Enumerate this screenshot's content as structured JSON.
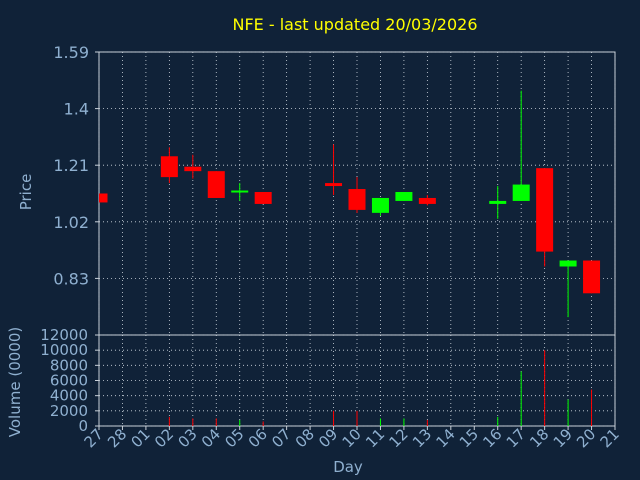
{
  "chart_data": {
    "type": "candlestick",
    "title": "NFE - last updated 20/03/2026",
    "ylabel": "Price",
    "volume_ylabel": "Volume (0000)",
    "xlabel": "Day",
    "ylim": [
      0.64,
      1.59
    ],
    "price_ticks": [
      "0.83",
      "1.02",
      "1.21",
      "1.4",
      "1.59"
    ],
    "volume_ylim": [
      0,
      12000
    ],
    "volume_ticks": [
      "0",
      "2000",
      "4000",
      "6000",
      "8000",
      "10000",
      "12000"
    ],
    "x_labels": [
      "27",
      "28",
      "01",
      "02",
      "03",
      "04",
      "05",
      "06",
      "07",
      "08",
      "09",
      "10",
      "11",
      "12",
      "13",
      "14",
      "15",
      "16",
      "17",
      "18",
      "19",
      "20",
      "21"
    ],
    "grid": true,
    "colors": {
      "background": "#102238",
      "up": "#00ff00",
      "down": "#ff0000",
      "grid": "#d0d8e0",
      "title": "#ffff00",
      "axis_text": "#8fb0d0"
    },
    "candles": [
      {
        "x": "27",
        "open": 1.115,
        "high": 1.115,
        "low": 1.085,
        "close": 1.085,
        "volume": 0
      },
      {
        "x": "02",
        "open": 1.24,
        "high": 1.27,
        "low": 1.15,
        "close": 1.17,
        "volume": 1200
      },
      {
        "x": "03",
        "open": 1.205,
        "high": 1.245,
        "low": 1.165,
        "close": 1.19,
        "volume": 1000
      },
      {
        "x": "04",
        "open": 1.19,
        "high": 1.19,
        "low": 1.1,
        "close": 1.1,
        "volume": 1000
      },
      {
        "x": "05",
        "open": 1.12,
        "high": 1.15,
        "low": 1.09,
        "close": 1.125,
        "volume": 800
      },
      {
        "x": "06",
        "open": 1.12,
        "high": 1.12,
        "low": 1.08,
        "close": 1.08,
        "volume": 600
      },
      {
        "x": "09",
        "open": 1.15,
        "high": 1.28,
        "low": 1.11,
        "close": 1.14,
        "volume": 2000
      },
      {
        "x": "10",
        "open": 1.13,
        "high": 1.17,
        "low": 1.05,
        "close": 1.06,
        "volume": 2000
      },
      {
        "x": "11",
        "open": 1.05,
        "high": 1.1,
        "low": 1.04,
        "close": 1.1,
        "volume": 1000
      },
      {
        "x": "12",
        "open": 1.09,
        "high": 1.12,
        "low": 1.09,
        "close": 1.12,
        "volume": 1000
      },
      {
        "x": "13",
        "open": 1.1,
        "high": 1.11,
        "low": 1.075,
        "close": 1.08,
        "volume": 800
      },
      {
        "x": "16",
        "open": 1.08,
        "high": 1.14,
        "low": 1.03,
        "close": 1.09,
        "volume": 1200
      },
      {
        "x": "17",
        "open": 1.09,
        "high": 1.46,
        "low": 1.09,
        "close": 1.145,
        "volume": 7200
      },
      {
        "x": "18",
        "open": 1.2,
        "high": 1.2,
        "low": 0.87,
        "close": 0.92,
        "volume": 10000
      },
      {
        "x": "19",
        "open": 0.87,
        "high": 0.89,
        "low": 0.7,
        "close": 0.89,
        "volume": 3500
      },
      {
        "x": "20",
        "open": 0.89,
        "high": 0.89,
        "low": 0.78,
        "close": 0.78,
        "volume": 4800
      }
    ]
  }
}
